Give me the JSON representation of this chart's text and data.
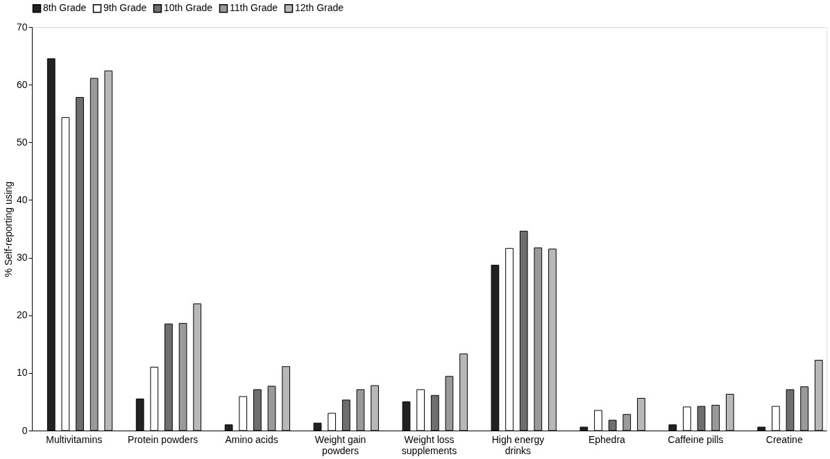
{
  "chart_data": {
    "type": "bar",
    "ylabel": "% Self-reporting using",
    "categories": [
      "Multivitamins",
      "Protein powders",
      "Amino acids",
      "Weight gain powders",
      "Weight loss supplements",
      "High energy drinks",
      "Ephedra",
      "Caffeine pills",
      "Creatine"
    ],
    "series": [
      {
        "name": "8th Grade",
        "color": "#222222",
        "values": [
          64.5,
          5.5,
          1.0,
          1.3,
          5.0,
          28.7,
          0.6,
          1.0,
          0.6
        ]
      },
      {
        "name": "9th Grade",
        "color": "#ffffff",
        "values": [
          54.3,
          11.0,
          5.9,
          3.0,
          7.1,
          31.6,
          3.5,
          4.1,
          4.2
        ]
      },
      {
        "name": "10th Grade",
        "color": "#6e6e6e",
        "values": [
          57.8,
          18.5,
          7.1,
          5.3,
          6.1,
          34.6,
          1.8,
          4.2,
          7.1
        ]
      },
      {
        "name": "11th Grade",
        "color": "#9a9a9a",
        "values": [
          61.1,
          18.6,
          7.7,
          7.1,
          9.4,
          31.7,
          2.8,
          4.4,
          7.6
        ]
      },
      {
        "name": "12th Grade",
        "color": "#b8b8b8",
        "values": [
          62.4,
          22.0,
          11.1,
          7.8,
          13.3,
          31.5,
          5.6,
          6.3,
          12.2
        ]
      }
    ],
    "ylim": [
      0,
      70
    ],
    "yticks": [
      0,
      10,
      20,
      30,
      40,
      50,
      60,
      70
    ],
    "grid": false,
    "legend": "top"
  }
}
